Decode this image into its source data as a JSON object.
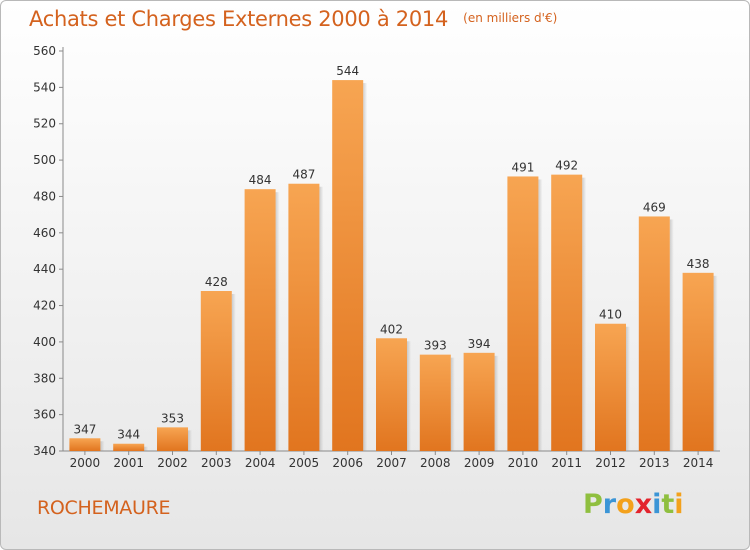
{
  "chart_data": {
    "type": "bar",
    "title": "Achats et Charges Externes 2000 à 2014",
    "subtitle": "(en milliers d'€)",
    "xlabel": "",
    "ylabel": "",
    "categories": [
      "2000",
      "2001",
      "2002",
      "2003",
      "2004",
      "2005",
      "2006",
      "2007",
      "2008",
      "2009",
      "2010",
      "2011",
      "2012",
      "2013",
      "2014"
    ],
    "values": [
      347,
      344,
      353,
      428,
      484,
      487,
      544,
      402,
      393,
      394,
      491,
      492,
      410,
      469,
      438
    ],
    "ylim": [
      340,
      560
    ],
    "yticks": [
      340,
      360,
      380,
      400,
      420,
      440,
      460,
      480,
      500,
      520,
      540,
      560
    ],
    "grid": false,
    "data_labels": true,
    "colors": {
      "bar_light": "#f7a552",
      "bar_dark": "#e1751f",
      "title": "#d4621e"
    }
  },
  "footer": {
    "city": "ROCHEMAURE",
    "logo": {
      "text": "Proxiti",
      "letters": [
        {
          "ch": "P",
          "color": "#8fbf3f"
        },
        {
          "ch": "r",
          "color": "#3b95d6"
        },
        {
          "ch": "o",
          "color": "#f3a11c"
        },
        {
          "ch": "x",
          "color": "#e3232c"
        },
        {
          "ch": "i",
          "color": "#3b95d6"
        },
        {
          "ch": "t",
          "color": "#8fbf3f"
        },
        {
          "ch": "i",
          "color": "#f3a11c"
        }
      ]
    }
  }
}
